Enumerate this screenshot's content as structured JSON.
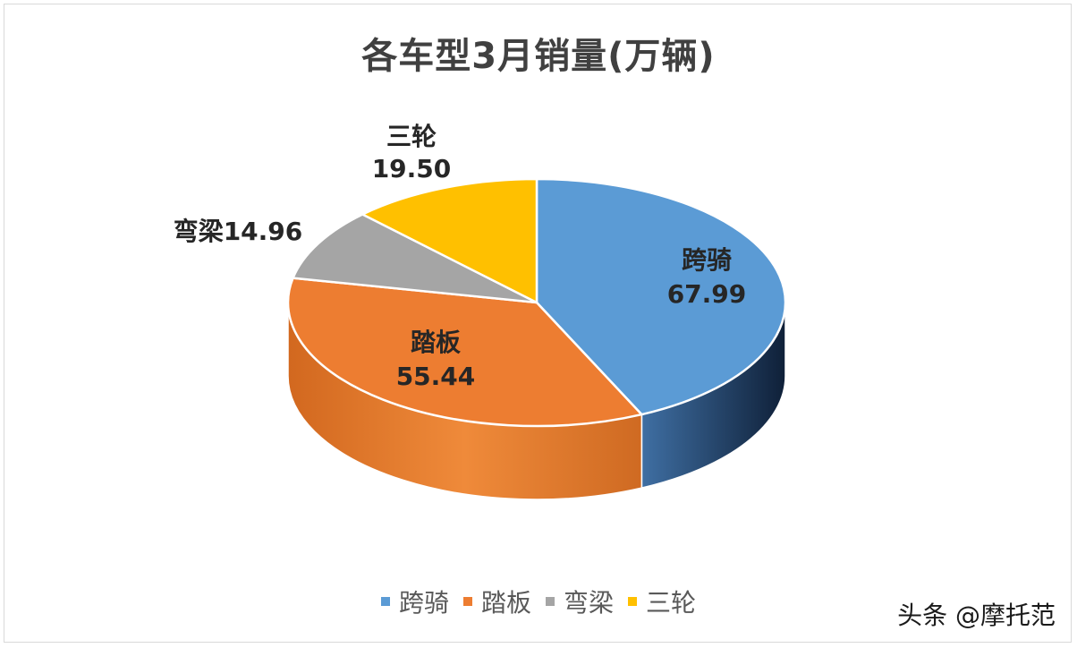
{
  "chart_data": {
    "type": "pie",
    "title": "各车型3月销量(万辆)",
    "categories": [
      "跨骑",
      "踏板",
      "弯梁",
      "三轮"
    ],
    "values": [
      67.99,
      55.44,
      14.96,
      19.5
    ],
    "value_labels": [
      "67.99",
      "55.44",
      "14.96",
      "19.50"
    ],
    "legend": {
      "position": "bottom"
    },
    "colors": [
      "#5b9bd5",
      "#ed7d31",
      "#a5a5a5",
      "#ffc000"
    ],
    "style": "3d"
  },
  "watermark": "头条 @摩托范"
}
